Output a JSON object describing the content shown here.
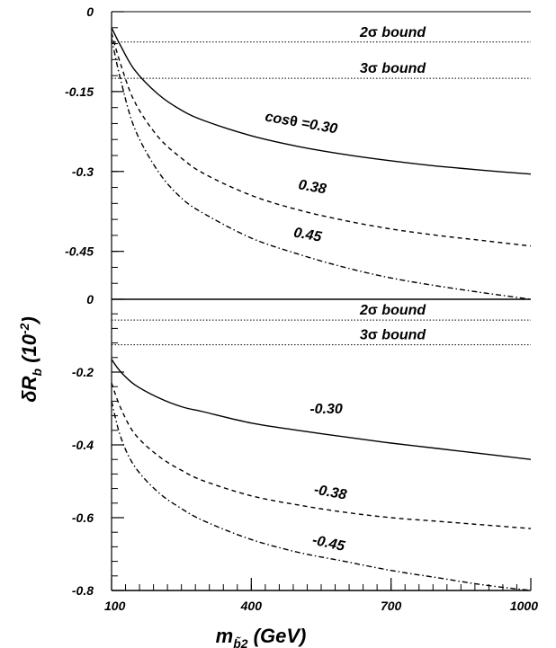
{
  "chart_data": [
    {
      "type": "line",
      "panel": "top",
      "xlim": [
        100,
        1000
      ],
      "ylim": [
        -0.54,
        0
      ],
      "ytick_labels": [
        "0",
        "-0.15",
        "-0.3",
        "-0.45"
      ],
      "ytick_values": [
        0,
        -0.15,
        -0.3,
        -0.45
      ],
      "bounds": [
        {
          "label_num": "2",
          "label_sigma": "σ",
          "label_word": " bound",
          "y": -0.057
        },
        {
          "label_num": "3",
          "label_sigma": "σ",
          "label_word": " bound",
          "y": -0.125
        }
      ],
      "series": [
        {
          "name": "cosθ =0.30",
          "label_prefix": "cos",
          "label_theta": "θ",
          "label_rest": " =0.30",
          "style": "solid",
          "x": [
            100,
            120,
            150,
            200,
            250,
            300,
            400,
            500,
            600,
            700,
            800,
            900,
            1000
          ],
          "y": [
            -0.03,
            -0.065,
            -0.11,
            -0.155,
            -0.185,
            -0.205,
            -0.233,
            -0.253,
            -0.268,
            -0.28,
            -0.29,
            -0.298,
            -0.305
          ]
        },
        {
          "name": "0.38",
          "label": "0.38",
          "style": "dashed",
          "x": [
            100,
            120,
            150,
            200,
            250,
            300,
            400,
            500,
            600,
            700,
            800,
            900,
            1000
          ],
          "y": [
            -0.04,
            -0.1,
            -0.17,
            -0.235,
            -0.275,
            -0.305,
            -0.345,
            -0.372,
            -0.392,
            -0.408,
            -0.42,
            -0.43,
            -0.44
          ]
        },
        {
          "name": "0.45",
          "label": "0.45",
          "style": "dashdot",
          "x": [
            100,
            120,
            150,
            200,
            250,
            300,
            400,
            500,
            600,
            700,
            800,
            900,
            950,
            1000
          ],
          "y": [
            -0.05,
            -0.13,
            -0.22,
            -0.3,
            -0.35,
            -0.38,
            -0.425,
            -0.455,
            -0.48,
            -0.5,
            -0.515,
            -0.528,
            -0.534,
            -0.54
          ]
        }
      ]
    },
    {
      "type": "line",
      "panel": "bottom",
      "xlim": [
        100,
        1000
      ],
      "ylim": [
        -0.8,
        0
      ],
      "ytick_labels": [
        "0",
        "-0.2",
        "-0.4",
        "-0.6",
        "-0.8"
      ],
      "ytick_values": [
        0,
        -0.2,
        -0.4,
        -0.6,
        -0.8
      ],
      "xtick_labels": [
        "100",
        "400",
        "700",
        "1000"
      ],
      "xtick_values": [
        100,
        400,
        700,
        1000
      ],
      "bounds": [
        {
          "label_num": "2",
          "label_sigma": "σ",
          "label_word": " bound",
          "y": -0.057
        },
        {
          "label_num": "3",
          "label_sigma": "σ",
          "label_word": " bound",
          "y": -0.125
        }
      ],
      "series": [
        {
          "name": "-0.30",
          "label": "-0.30",
          "style": "solid",
          "x": [
            100,
            120,
            150,
            200,
            250,
            300,
            400,
            500,
            600,
            700,
            800,
            900,
            1000
          ],
          "y": [
            -0.165,
            -0.2,
            -0.235,
            -0.27,
            -0.295,
            -0.31,
            -0.34,
            -0.36,
            -0.378,
            -0.395,
            -0.41,
            -0.425,
            -0.44
          ]
        },
        {
          "name": "-0.38",
          "label": "-0.38",
          "style": "dashed",
          "x": [
            100,
            120,
            150,
            200,
            250,
            300,
            400,
            500,
            600,
            700,
            800,
            900,
            1000
          ],
          "y": [
            -0.23,
            -0.3,
            -0.37,
            -0.43,
            -0.47,
            -0.5,
            -0.54,
            -0.565,
            -0.585,
            -0.6,
            -0.61,
            -0.62,
            -0.63
          ]
        },
        {
          "name": "-0.45",
          "label": "-0.45",
          "style": "dashdot",
          "x": [
            100,
            120,
            150,
            200,
            250,
            300,
            400,
            500,
            600,
            700,
            800,
            900,
            1000
          ],
          "y": [
            -0.28,
            -0.38,
            -0.46,
            -0.53,
            -0.575,
            -0.61,
            -0.66,
            -0.695,
            -0.72,
            -0.745,
            -0.765,
            -0.785,
            -0.8
          ]
        }
      ]
    }
  ],
  "axes": {
    "xlabel_main": "m",
    "xlabel_sub": "b̃2",
    "xlabel_unit": " (GeV)",
    "ylabel_delta": "δ",
    "ylabel_main": "R",
    "ylabel_sub": "b",
    "ylabel_unit": " (10",
    "ylabel_exp": "-2",
    "ylabel_close": ")"
  }
}
